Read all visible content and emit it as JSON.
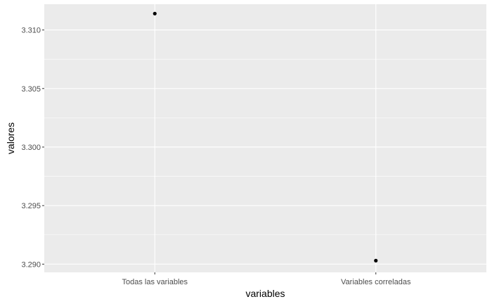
{
  "chart_data": {
    "type": "scatter",
    "title": "",
    "xlabel": "variables",
    "ylabel": "valores",
    "categories": [
      "Todas las variables",
      "Variables correladas"
    ],
    "values": [
      3.3114,
      3.2903
    ],
    "ylim": [
      3.2893,
      3.3122
    ],
    "yticks": [
      3.29,
      3.295,
      3.3,
      3.305,
      3.31
    ],
    "ytick_labels": [
      "3.290",
      "3.295",
      "3.300",
      "3.305",
      "3.310"
    ],
    "grid": true,
    "legend": "none",
    "colors": {
      "panel": "#ebebeb",
      "grid": "#ffffff",
      "point": "#000000",
      "tick_text": "#4d4d4d"
    }
  }
}
